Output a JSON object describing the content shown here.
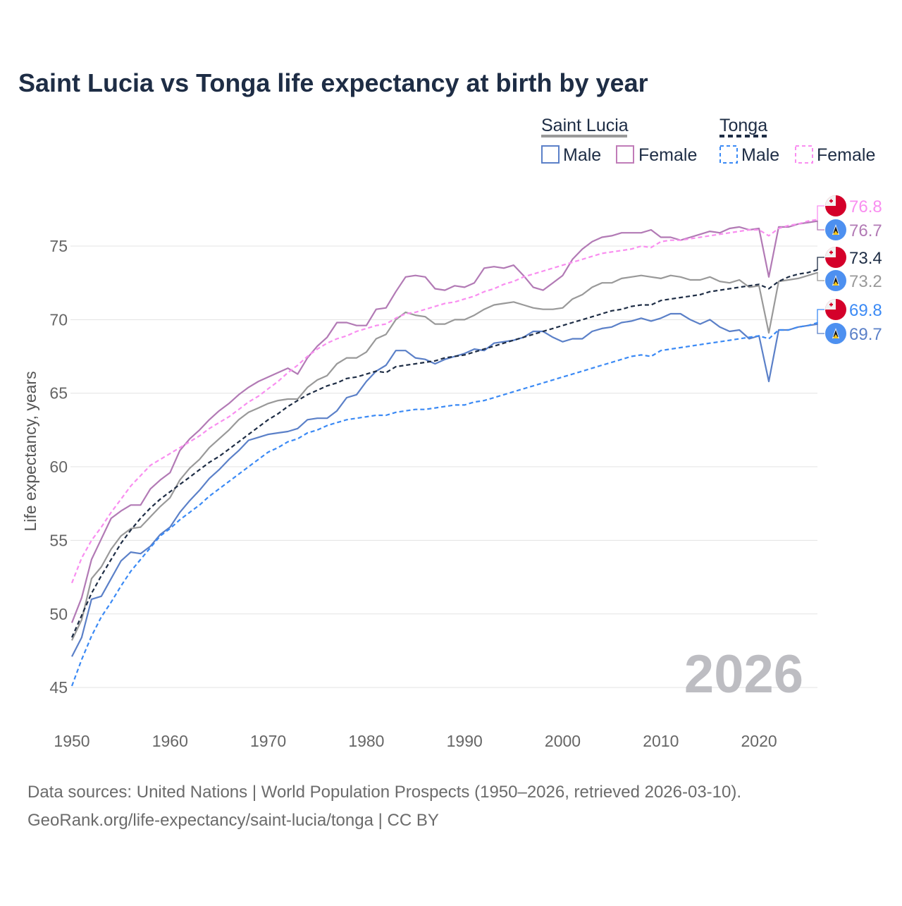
{
  "title": "Saint Lucia vs Tonga life expectancy at birth by year",
  "legend": {
    "groups": [
      {
        "name": "Saint Lucia",
        "male": "Male",
        "female": "Female"
      },
      {
        "name": "Tonga",
        "male": "Male",
        "female": "Female"
      }
    ]
  },
  "watermark_year": "2026",
  "footer": {
    "line1": "Data sources: United Nations | World Population Prospects (1950–2026, retrieved 2026-03-10).",
    "line2": "GeoRank.org/life-expectancy/saint-lucia/tonga | CC BY"
  },
  "end_labels": [
    {
      "value": "76.8",
      "country": "Tonga",
      "color": "#f98ef0"
    },
    {
      "value": "76.7",
      "country": "Saint Lucia",
      "color": "#b27ab5"
    },
    {
      "value": "73.4",
      "country": "Tonga",
      "color": "#1e2d45"
    },
    {
      "value": "73.2",
      "country": "Saint Lucia",
      "color": "#999999"
    },
    {
      "value": "69.8",
      "country": "Tonga",
      "color": "#3b8af5"
    },
    {
      "value": "69.7",
      "country": "Saint Lucia",
      "color": "#5b80c8"
    }
  ],
  "chart_data": {
    "type": "line",
    "title": "Saint Lucia vs Tonga life expectancy at birth by year",
    "xlabel": "",
    "ylabel": "Life expectancy, years",
    "xlim": [
      1950,
      2026
    ],
    "ylim": [
      43.5,
      78
    ],
    "xticks": [
      "1950",
      "1960",
      "1970",
      "1980",
      "1990",
      "2000",
      "2010",
      "2020"
    ],
    "yticks": [
      "45",
      "50",
      "55",
      "60",
      "65",
      "70",
      "75"
    ],
    "grid": true,
    "legend_position": "top-right",
    "x_start": 1950,
    "series": [
      {
        "name": "Saint Lucia Male",
        "color": "#5b80c8",
        "dashed": false,
        "values": [
          47.1,
          48.4,
          51.0,
          51.2,
          52.4,
          53.6,
          54.2,
          54.1,
          54.6,
          55.4,
          55.9,
          56.9,
          57.7,
          58.4,
          59.2,
          59.8,
          60.5,
          61.1,
          61.8,
          62.0,
          62.2,
          62.3,
          62.4,
          62.6,
          63.2,
          63.3,
          63.3,
          63.8,
          64.7,
          64.9,
          65.8,
          66.5,
          66.9,
          67.9,
          67.9,
          67.4,
          67.3,
          67.0,
          67.3,
          67.5,
          67.7,
          68.0,
          67.9,
          68.4,
          68.5,
          68.6,
          68.8,
          69.2,
          69.2,
          68.8,
          68.5,
          68.7,
          68.7,
          69.2,
          69.4,
          69.5,
          69.8,
          69.9,
          70.1,
          69.9,
          70.1,
          70.4,
          70.4,
          70.0,
          69.7,
          70.0,
          69.5,
          69.2,
          69.3,
          68.7,
          68.9,
          65.8,
          69.3,
          69.3,
          69.5,
          69.6,
          69.7
        ]
      },
      {
        "name": "Saint Lucia Female",
        "color": "#b27ab5",
        "dashed": false,
        "values": [
          49.4,
          51.1,
          53.7,
          55.1,
          56.5,
          57.0,
          57.4,
          57.4,
          58.5,
          59.1,
          59.6,
          61.1,
          61.9,
          62.5,
          63.2,
          63.8,
          64.3,
          64.9,
          65.4,
          65.8,
          66.1,
          66.4,
          66.7,
          66.3,
          67.4,
          68.2,
          68.8,
          69.8,
          69.8,
          69.6,
          69.6,
          70.7,
          70.8,
          71.9,
          72.9,
          73.0,
          72.9,
          72.1,
          72.0,
          72.3,
          72.2,
          72.5,
          73.5,
          73.6,
          73.5,
          73.7,
          73.0,
          72.2,
          72.0,
          72.5,
          73.0,
          74.1,
          74.8,
          75.3,
          75.6,
          75.7,
          75.9,
          75.9,
          75.9,
          76.1,
          75.6,
          75.6,
          75.4,
          75.6,
          75.8,
          76.0,
          75.9,
          76.2,
          76.3,
          76.1,
          76.2,
          72.9,
          76.3,
          76.3,
          76.5,
          76.6,
          76.7
        ]
      },
      {
        "name": "Saint Lucia",
        "color": "#999999",
        "dashed": false,
        "values": [
          48.2,
          49.6,
          52.4,
          53.2,
          54.4,
          55.3,
          55.8,
          55.9,
          56.6,
          57.3,
          57.9,
          59.1,
          59.9,
          60.5,
          61.3,
          61.9,
          62.5,
          63.2,
          63.7,
          64.0,
          64.3,
          64.5,
          64.6,
          64.6,
          65.4,
          65.9,
          66.2,
          67.0,
          67.4,
          67.4,
          67.8,
          68.7,
          69.0,
          70.0,
          70.5,
          70.3,
          70.2,
          69.7,
          69.7,
          70.0,
          70.0,
          70.3,
          70.7,
          71.0,
          71.1,
          71.2,
          71.0,
          70.8,
          70.7,
          70.7,
          70.8,
          71.4,
          71.7,
          72.2,
          72.5,
          72.5,
          72.8,
          72.9,
          73.0,
          72.9,
          72.8,
          73.0,
          72.9,
          72.7,
          72.7,
          72.9,
          72.6,
          72.5,
          72.7,
          72.2,
          72.3,
          69.1,
          72.6,
          72.7,
          72.8,
          73.0,
          73.2
        ]
      },
      {
        "name": "Tonga Male",
        "color": "#3b8af5",
        "dashed": true,
        "values": [
          45.1,
          46.9,
          48.5,
          49.8,
          50.8,
          51.9,
          52.9,
          53.7,
          54.5,
          55.3,
          55.8,
          56.4,
          56.9,
          57.4,
          58.0,
          58.5,
          59.0,
          59.5,
          60.0,
          60.5,
          61.0,
          61.3,
          61.7,
          61.9,
          62.3,
          62.5,
          62.8,
          63.0,
          63.2,
          63.3,
          63.4,
          63.5,
          63.5,
          63.7,
          63.8,
          63.9,
          63.9,
          64.0,
          64.1,
          64.2,
          64.2,
          64.4,
          64.5,
          64.7,
          64.9,
          65.1,
          65.3,
          65.5,
          65.7,
          65.9,
          66.1,
          66.3,
          66.5,
          66.7,
          66.9,
          67.1,
          67.3,
          67.5,
          67.6,
          67.5,
          67.9,
          68.0,
          68.1,
          68.2,
          68.3,
          68.4,
          68.5,
          68.6,
          68.7,
          68.8,
          68.9,
          68.7,
          69.3,
          69.3,
          69.5,
          69.6,
          69.8
        ]
      },
      {
        "name": "Tonga Female",
        "color": "#f98ef0",
        "dashed": true,
        "values": [
          52.1,
          53.8,
          55.0,
          55.9,
          56.9,
          57.8,
          58.7,
          59.4,
          60.1,
          60.5,
          60.9,
          61.3,
          61.7,
          62.1,
          62.6,
          63.0,
          63.4,
          63.9,
          64.4,
          64.8,
          65.3,
          65.8,
          66.4,
          66.9,
          67.5,
          68.0,
          68.4,
          68.7,
          68.9,
          69.2,
          69.4,
          69.6,
          69.7,
          70.1,
          70.4,
          70.5,
          70.7,
          70.9,
          71.1,
          71.2,
          71.4,
          71.6,
          71.9,
          72.1,
          72.4,
          72.6,
          72.9,
          73.1,
          73.3,
          73.5,
          73.7,
          73.9,
          74.1,
          74.3,
          74.5,
          74.6,
          74.7,
          74.8,
          75.0,
          74.9,
          75.3,
          75.4,
          75.4,
          75.5,
          75.6,
          75.7,
          75.8,
          75.9,
          76.0,
          76.1,
          76.1,
          75.7,
          76.2,
          76.4,
          76.5,
          76.7,
          76.8
        ]
      },
      {
        "name": "Tonga",
        "color": "#1e2d45",
        "dashed": true,
        "values": [
          48.4,
          49.9,
          51.4,
          52.6,
          53.7,
          54.8,
          55.7,
          56.5,
          57.2,
          57.8,
          58.3,
          58.8,
          59.3,
          59.8,
          60.3,
          60.7,
          61.2,
          61.7,
          62.2,
          62.7,
          63.2,
          63.6,
          64.1,
          64.5,
          64.9,
          65.2,
          65.5,
          65.7,
          66.0,
          66.1,
          66.3,
          66.5,
          66.4,
          66.8,
          66.9,
          67.0,
          67.1,
          67.2,
          67.4,
          67.5,
          67.6,
          67.8,
          68.0,
          68.2,
          68.4,
          68.6,
          68.8,
          69.0,
          69.2,
          69.4,
          69.6,
          69.8,
          70.0,
          70.2,
          70.4,
          70.6,
          70.7,
          70.9,
          71.0,
          71.0,
          71.3,
          71.4,
          71.5,
          71.6,
          71.7,
          71.9,
          72.0,
          72.1,
          72.2,
          72.3,
          72.4,
          72.1,
          72.6,
          72.9,
          73.1,
          73.2,
          73.4
        ]
      }
    ]
  }
}
